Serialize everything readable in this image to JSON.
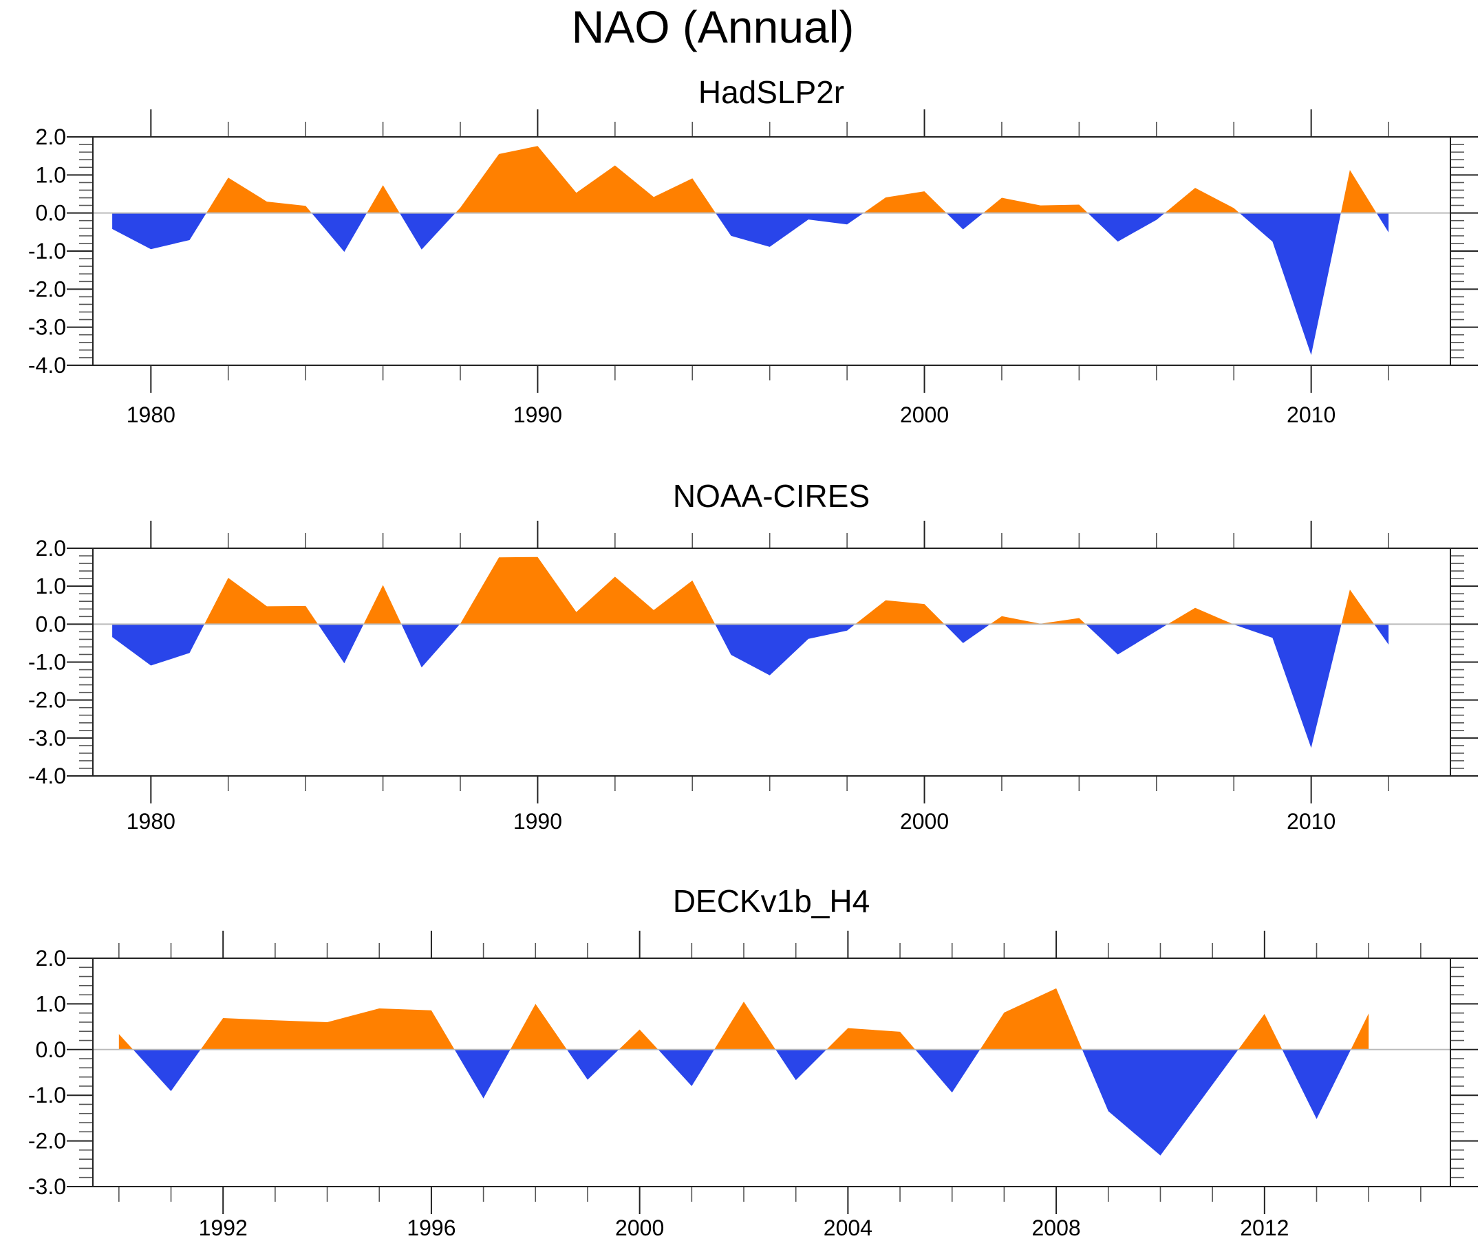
{
  "chart_data": {
    "title": "NAO (Annual)",
    "type": "area",
    "colors": {
      "positive": "#FF8000",
      "negative": "#2945EA"
    },
    "panels": [
      {
        "name": "HadSLP2r",
        "type": "area",
        "xlabel": "",
        "ylabel": "",
        "xlim": [
          1978.5,
          2013.6
        ],
        "ylim": [
          -4.0,
          2.0
        ],
        "yticks": [
          2.0,
          1.0,
          0.0,
          -1.0,
          -2.0,
          -3.0,
          -4.0
        ],
        "ytick_labels": [
          "2.0",
          "1.0",
          "0.0",
          "-1.0",
          "-2.0",
          "-3.0",
          "-4.0"
        ],
        "xticks_major": [
          1980,
          1990,
          2000,
          2010
        ],
        "xtick_labels": [
          "1980",
          "1990",
          "2000",
          "2010"
        ],
        "xtick_minor_step": 2,
        "x": [
          1979,
          1980,
          1981,
          1982,
          1983,
          1984,
          1985,
          1986,
          1987,
          1988,
          1989,
          1990,
          1991,
          1992,
          1993,
          1994,
          1995,
          1996,
          1997,
          1998,
          1999,
          2000,
          2001,
          2002,
          2003,
          2004,
          2005,
          2006,
          2007,
          2008,
          2009,
          2010,
          2011,
          2012
        ],
        "values": [
          -0.42,
          -0.95,
          -0.71,
          0.93,
          0.3,
          0.19,
          -1.02,
          0.73,
          -0.96,
          0.14,
          1.55,
          1.76,
          0.53,
          1.25,
          0.42,
          0.91,
          -0.6,
          -0.89,
          -0.17,
          -0.3,
          0.41,
          0.57,
          -0.43,
          0.4,
          0.2,
          0.22,
          -0.75,
          -0.18,
          0.66,
          0.13,
          -0.75,
          -3.73,
          1.13,
          -0.51
        ]
      },
      {
        "name": "NOAA-CIRES",
        "type": "area",
        "xlabel": "",
        "ylabel": "",
        "xlim": [
          1978.5,
          2013.6
        ],
        "ylim": [
          -4.0,
          2.0
        ],
        "yticks": [
          2.0,
          1.0,
          0.0,
          -1.0,
          -2.0,
          -3.0,
          -4.0
        ],
        "ytick_labels": [
          "2.0",
          "1.0",
          "0.0",
          "-1.0",
          "-2.0",
          "-3.0",
          "-4.0"
        ],
        "xticks_major": [
          1980,
          1990,
          2000,
          2010
        ],
        "xtick_labels": [
          "1980",
          "1990",
          "2000",
          "2010"
        ],
        "xtick_minor_step": 2,
        "x": [
          1979,
          1980,
          1981,
          1982,
          1983,
          1984,
          1985,
          1986,
          1987,
          1988,
          1989,
          1990,
          1991,
          1992,
          1993,
          1994,
          1995,
          1996,
          1997,
          1998,
          1999,
          2000,
          2001,
          2002,
          2003,
          2004,
          2005,
          2006,
          2007,
          2008,
          2009,
          2010,
          2011,
          2012
        ],
        "values": [
          -0.34,
          -1.09,
          -0.76,
          1.22,
          0.47,
          0.48,
          -1.03,
          1.03,
          -1.14,
          0.01,
          1.76,
          1.77,
          0.32,
          1.25,
          0.37,
          1.15,
          -0.81,
          -1.35,
          -0.39,
          -0.17,
          0.63,
          0.53,
          -0.5,
          0.21,
          0.01,
          0.16,
          -0.8,
          -0.18,
          0.43,
          -0.01,
          -0.36,
          -3.26,
          0.91,
          -0.54
        ]
      },
      {
        "name": "DECKv1b_H4",
        "type": "area",
        "xlabel": "",
        "ylabel": "",
        "xlim": [
          1989.5,
          2015.57
        ],
        "ylim": [
          -3.0,
          2.0
        ],
        "yticks": [
          2.0,
          1.0,
          0.0,
          -1.0,
          -2.0,
          -3.0
        ],
        "ytick_labels": [
          "2.0",
          "1.0",
          "0.0",
          "-1.0",
          "-2.0",
          "-3.0"
        ],
        "xticks_major": [
          1992,
          1996,
          2000,
          2004,
          2008,
          2012
        ],
        "xtick_labels": [
          "1992",
          "1996",
          "2000",
          "2004",
          "2008",
          "2012"
        ],
        "xtick_minor_step": 1,
        "x": [
          1990,
          1991,
          1992,
          1993,
          1994,
          1995,
          1996,
          1997,
          1998,
          1999,
          2000,
          2001,
          2002,
          2003,
          2004,
          2005,
          2006,
          2007,
          2008,
          2009,
          2010,
          2011,
          2012,
          2013,
          2014
        ],
        "values": [
          0.34,
          -0.91,
          0.69,
          0.64,
          0.6,
          0.9,
          0.86,
          -1.07,
          1.0,
          -0.66,
          0.44,
          -0.8,
          1.05,
          -0.67,
          0.47,
          0.39,
          -0.94,
          0.81,
          1.34,
          -1.35,
          -2.32,
          -0.77,
          0.78,
          -1.52,
          0.79
        ]
      }
    ]
  }
}
